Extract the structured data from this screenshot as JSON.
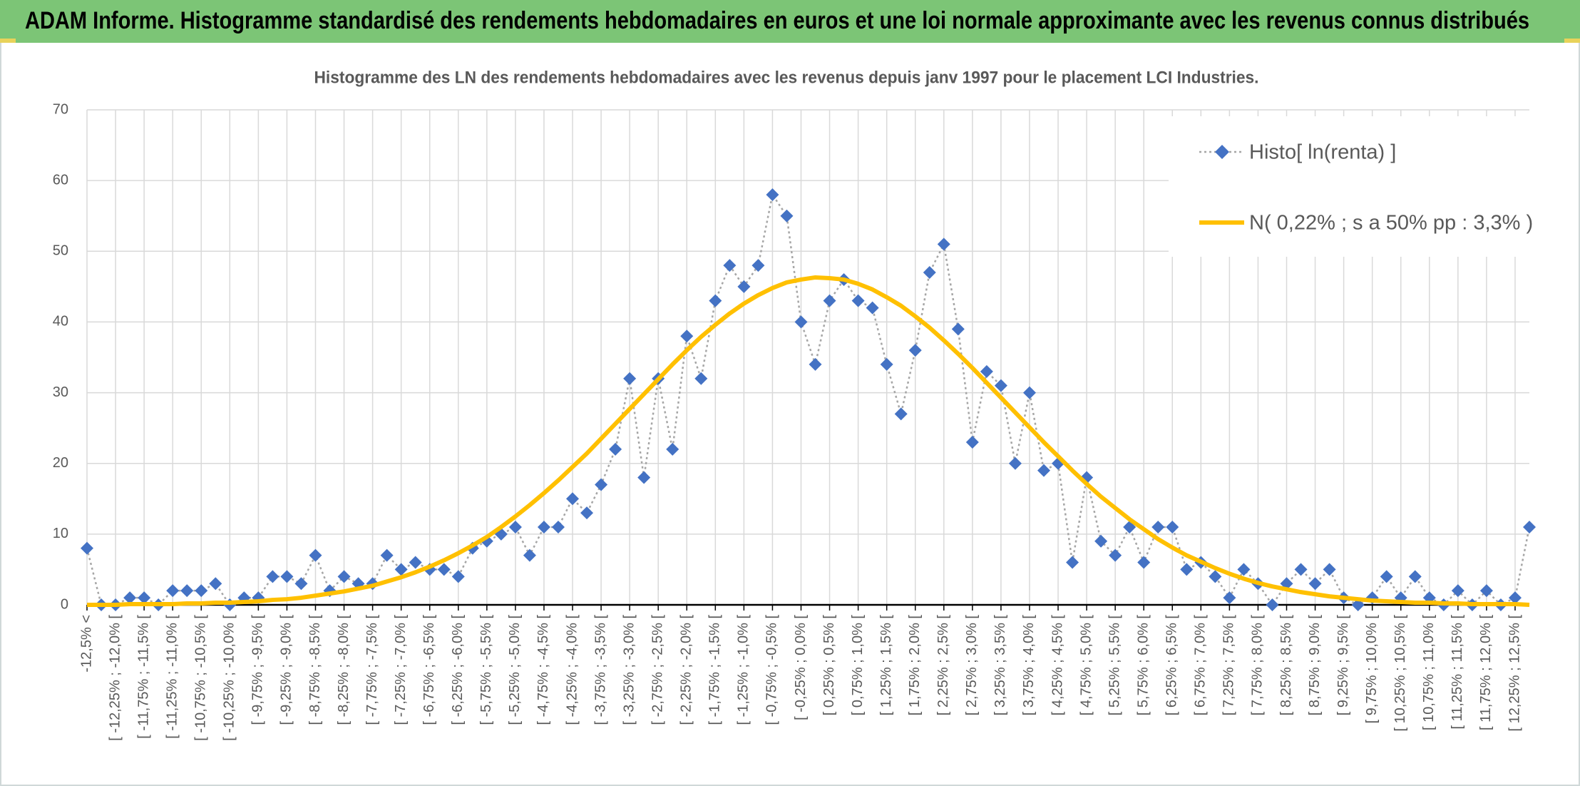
{
  "header": {
    "title": "ADAM Informe. Histogramme standardisé des rendements hebdomadaires en euros et une loi normale approximante avec les revenus connus distribués"
  },
  "chart_data": {
    "type": "line",
    "title": "Histogramme des LN des rendements hebdomadaires avec les revenus depuis janv 1997 pour le placement LCI Industries.",
    "categories": [
      "-12,5% <",
      null,
      "[ -12,25% ; -12,0% [",
      null,
      "[ -11,75% ; -11,5% [",
      null,
      "[ -11,25% ; -11,0% [",
      null,
      "[ -10,75% ; -10,5% [",
      null,
      "[ -10,25% ; -10,0% [",
      null,
      "[ -9,75% ; -9,5% [",
      null,
      "[ -9,25% ; -9,0% [",
      null,
      "[ -8,75% ; -8,5% [",
      null,
      "[ -8,25% ; -8,0% [",
      null,
      "[ -7,75% ; -7,5% [",
      null,
      "[ -7,25% ; -7,0% [",
      null,
      "[ -6,75% ; -6,5% [",
      null,
      "[ -6,25% ; -6,0% [",
      null,
      "[ -5,75% ; -5,5% [",
      null,
      "[ -5,25% ; -5,0% [",
      null,
      "[ -4,75% ; -4,5% [",
      null,
      "[ -4,25% ; -4,0% [",
      null,
      "[ -3,75% ; -3,5% [",
      null,
      "[ -3,25% ; -3,0% [",
      null,
      "[ -2,75% ; -2,5% [",
      null,
      "[ -2,25% ; -2,0% [",
      null,
      "[ -1,75% ; -1,5% [",
      null,
      "[ -1,25% ; -1,0% [",
      null,
      "[ -0,75% ; -0,5% [",
      null,
      "[ -0,25% ; 0,0% [",
      null,
      "[ 0,25% ; 0,5% [",
      null,
      "[ 0,75% ; 1,0% [",
      null,
      "[ 1,25% ; 1,5% [",
      null,
      "[ 1,75% ; 2,0% [",
      null,
      "[ 2,25% ; 2,5% [",
      null,
      "[ 2,75% ; 3,0% [",
      null,
      "[ 3,25% ; 3,5% [",
      null,
      "[ 3,75% ; 4,0% [",
      null,
      "[ 4,25% ; 4,5% [",
      null,
      "[ 4,75% ; 5,0% [",
      null,
      "[ 5,25% ; 5,5% [",
      null,
      "[ 5,75% ; 6,0% [",
      null,
      "[ 6,25% ; 6,5% [",
      null,
      "[ 6,75% ; 7,0% [",
      null,
      "[ 7,25% ; 7,5% [",
      null,
      "[ 7,75% ; 8,0% [",
      null,
      "[ 8,25% ; 8,5% [",
      null,
      "[ 8,75% ; 9,0% [",
      null,
      "[ 9,25% ; 9,5% [",
      null,
      "[ 9,75% ; 10,0% [",
      null,
      "[ 10,25% ; 10,5% [",
      null,
      "[ 10,75% ; 11,0% [",
      null,
      "[ 11,25% ; 11,5% [",
      null,
      "[ 11,75% ; 12,0% [",
      null,
      "[ 12,25% ; 12,5% [",
      null
    ],
    "series": [
      {
        "name": "Histo[ ln(renta) ]",
        "color": "#4472c4",
        "line_color": "#a6a6a6",
        "marker": "diamond",
        "values": [
          8,
          0,
          0,
          1,
          1,
          0,
          2,
          2,
          2,
          3,
          0,
          1,
          1,
          4,
          4,
          3,
          7,
          2,
          4,
          3,
          3,
          7,
          5,
          6,
          5,
          5,
          4,
          8,
          9,
          10,
          11,
          7,
          11,
          11,
          15,
          13,
          17,
          22,
          32,
          18,
          32,
          22,
          38,
          32,
          43,
          48,
          45,
          48,
          58,
          55,
          40,
          34,
          43,
          46,
          43,
          42,
          34,
          27,
          36,
          47,
          51,
          39,
          23,
          33,
          31,
          20,
          30,
          19,
          20,
          6,
          18,
          9,
          7,
          11,
          6,
          11,
          11,
          5,
          6,
          4,
          1,
          5,
          3,
          0,
          3,
          5,
          3,
          5,
          1,
          0,
          1,
          4,
          1,
          4,
          1,
          0,
          2,
          0,
          2,
          0,
          1,
          11
        ]
      },
      {
        "name": "N( 0,22% ; s a 50% pp : 3,3% )",
        "color": "#ffc000",
        "values": [
          0.0,
          0.0,
          0.0,
          0.1,
          0.1,
          0.1,
          0.1,
          0.2,
          0.2,
          0.3,
          0.3,
          0.4,
          0.5,
          0.7,
          0.8,
          1.0,
          1.3,
          1.6,
          1.9,
          2.3,
          2.7,
          3.3,
          3.9,
          4.6,
          5.4,
          6.3,
          7.3,
          8.4,
          9.6,
          11.0,
          12.5,
          14.1,
          15.8,
          17.6,
          19.5,
          21.4,
          23.5,
          25.6,
          27.7,
          29.8,
          31.9,
          34.0,
          36.0,
          37.9,
          39.6,
          41.2,
          42.6,
          43.8,
          44.8,
          45.6,
          46.0,
          46.3,
          46.2,
          46.0,
          45.4,
          44.6,
          43.5,
          42.3,
          40.8,
          39.2,
          37.4,
          35.5,
          33.5,
          31.4,
          29.3,
          27.2,
          25.1,
          23.0,
          21.0,
          19.0,
          17.1,
          15.3,
          13.7,
          12.1,
          10.7,
          9.3,
          8.1,
          7.0,
          6.1,
          5.2,
          4.4,
          3.7,
          3.1,
          2.6,
          2.2,
          1.8,
          1.5,
          1.2,
          1.0,
          0.8,
          0.6,
          0.5,
          0.4,
          0.3,
          0.3,
          0.2,
          0.2,
          0.1,
          0.1,
          0.1,
          0.1,
          0.0
        ]
      }
    ],
    "ylim": [
      0,
      70
    ],
    "yticks": [
      0,
      10,
      20,
      30,
      40,
      50,
      60,
      70
    ],
    "grid": true,
    "legend": "upper right"
  }
}
